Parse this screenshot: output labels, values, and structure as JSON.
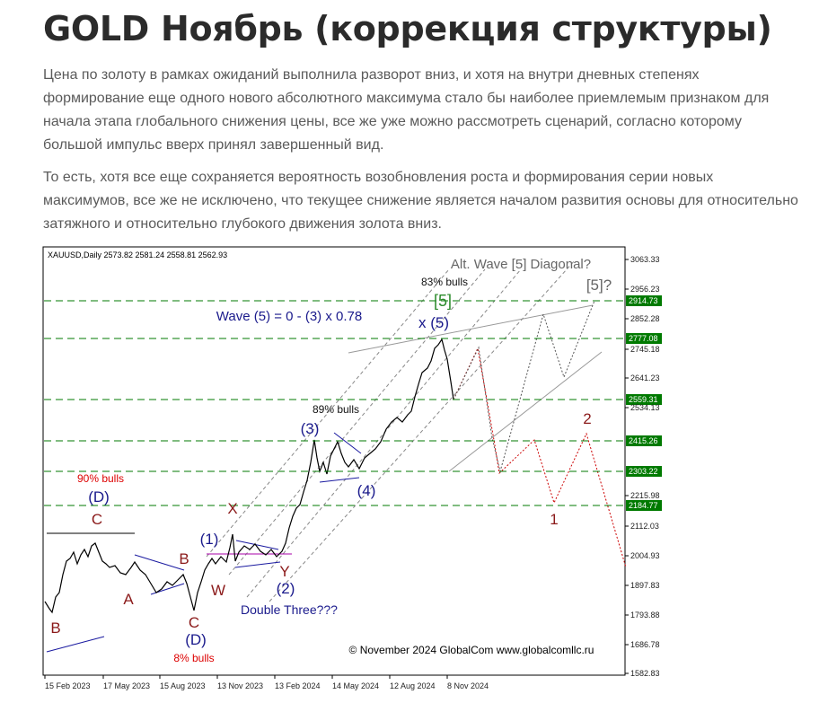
{
  "header": {
    "title": "GOLD Ноябрь (коррекция структуры)"
  },
  "paragraphs": [
    "Цена по золоту в рамках ожиданий выполнила разворот вниз, и хотя на внутри дневных степенях формирование еще одного нового абсолютного максимума стало бы наиболее приемлемым признаком для начала этапа глобального снижения цены, все же уже можно рассмотреть сценарий, согласно которому большой импульс вверх принял завершенный вид.",
    "То есть, хотя все еще сохраняется вероятность возобновления роста и формирования серии новых максимумов, все же не исключено, что текущее снижение является началом развития основы для относительно затяжного и относительно глубокого движения золота вниз."
  ],
  "chart": {
    "header": "XAUUSD,Daily  2573.82 2581.24 2558.81 2562.93",
    "price_labels": [
      "3063.33",
      "2956.23",
      "2852.28",
      "2745.18",
      "2641.23",
      "2534.13",
      "2215.98",
      "2112.03",
      "2004.93",
      "1897.83",
      "1793.88",
      "1686.78",
      "1582.83"
    ],
    "level_labels": [
      "2914.73",
      "2777.08",
      "2559.31",
      "2415.26",
      "2303.22",
      "2184.77"
    ],
    "date_labels": [
      "15 Feb 2023",
      "17 May 2023",
      "15 Aug 2023",
      "13 Nov 2023",
      "13 Feb 2024",
      "14 May 2024",
      "12 Aug 2024",
      "8 Nov 2024"
    ],
    "annotations": [
      "Alt. Wave [5] Diagonal?",
      "83% bulls",
      "[5]",
      "[5]?",
      "Wave (5) = 0 - (3) x 0.78",
      "x (5)",
      "89% bulls",
      "(3)",
      "(4)",
      "2",
      "1",
      "90% bulls",
      "(D)",
      "C",
      "X",
      "(1)",
      "B",
      "Y",
      "W",
      "(2)",
      "A",
      "Double Three???",
      "B",
      "C",
      "(D)",
      "8% bulls"
    ],
    "copyright": "© November 2024 GlobalCom www.globalcomllc.ru"
  }
}
